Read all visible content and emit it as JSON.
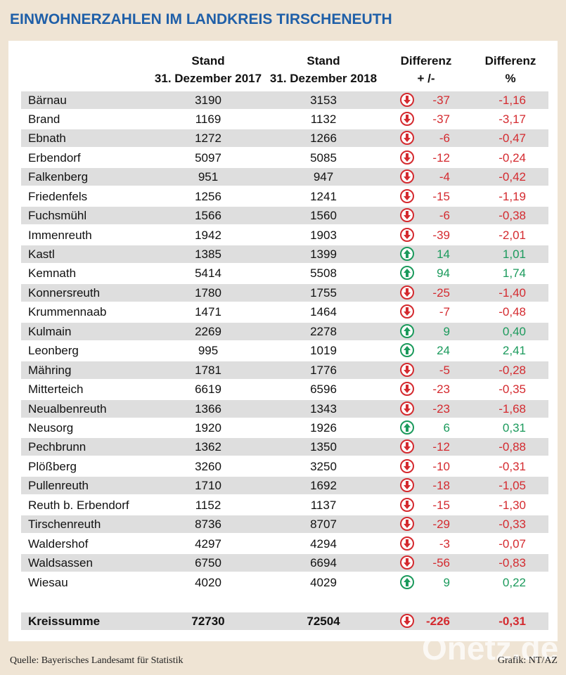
{
  "header": {
    "title": "EINWOHNERZAHLEN IM LANDKREIS TIRSCHENEUTH"
  },
  "table": {
    "columns": [
      {
        "line1": "Stand",
        "line2": "31. Dezember 2017"
      },
      {
        "line1": "Stand",
        "line2": "31. Dezember 2018"
      },
      {
        "line1": "Differenz",
        "line2": "+ /-"
      },
      {
        "line1": "Differenz",
        "line2": "%"
      }
    ],
    "rows": [
      [
        "Bärnau",
        "3190",
        "3153",
        "-37",
        "-1,16"
      ],
      [
        "Brand",
        "1169",
        "1132",
        "-37",
        "-3,17"
      ],
      [
        "Ebnath",
        "1272",
        "1266",
        "-6",
        "-0,47"
      ],
      [
        "Erbendorf",
        "5097",
        "5085",
        "-12",
        "-0,24"
      ],
      [
        "Falkenberg",
        "951",
        "947",
        "-4",
        "-0,42"
      ],
      [
        "Friedenfels",
        "1256",
        "1241",
        "-15",
        "-1,19"
      ],
      [
        "Fuchsmühl",
        "1566",
        "1560",
        "-6",
        "-0,38"
      ],
      [
        "Immenreuth",
        "1942",
        "1903",
        "-39",
        "-2,01"
      ],
      [
        "Kastl",
        "1385",
        "1399",
        "14",
        "1,01"
      ],
      [
        "Kemnath",
        "5414",
        "5508",
        "94",
        "1,74"
      ],
      [
        "Konnersreuth",
        "1780",
        "1755",
        "-25",
        "-1,40"
      ],
      [
        "Krummennaab",
        "1471",
        "1464",
        "-7",
        "-0,48"
      ],
      [
        "Kulmain",
        "2269",
        "2278",
        "9",
        "0,40"
      ],
      [
        "Leonberg",
        "995",
        "1019",
        "24",
        "2,41"
      ],
      [
        "Mähring",
        "1781",
        "1776",
        "-5",
        "-0,28"
      ],
      [
        "Mitterteich",
        "6619",
        "6596",
        "-23",
        "-0,35"
      ],
      [
        "Neualbenreuth",
        "1366",
        "1343",
        "-23",
        "-1,68"
      ],
      [
        "Neusorg",
        "1920",
        "1926",
        "6",
        "0,31"
      ],
      [
        "Pechbrunn",
        "1362",
        "1350",
        "-12",
        "-0,88"
      ],
      [
        "Plößberg",
        "3260",
        "3250",
        "-10",
        "-0,31"
      ],
      [
        "Pullenreuth",
        "1710",
        "1692",
        "-18",
        "-1,05"
      ],
      [
        "Reuth b. Erbendorf",
        "1152",
        "1137",
        "-15",
        "-1,30"
      ],
      [
        "Tirschenreuth",
        "8736",
        "8707",
        "-29",
        "-0,33"
      ],
      [
        "Waldershof",
        "4297",
        "4294",
        "-3",
        "-0,07"
      ],
      [
        "Waldsassen",
        "6750",
        "6694",
        "-56",
        "-0,83"
      ],
      [
        "Wiesau",
        "4020",
        "4029",
        "9",
        "0,22"
      ]
    ],
    "total": [
      "Kreissumme",
      "72730",
      "72504",
      "-226",
      "-0,31"
    ]
  },
  "footer": {
    "source": "Quelle: Bayerisches Landesamt für Statistik",
    "credit": "Grafik: NT/AZ",
    "watermark": "Onetz.de"
  }
}
